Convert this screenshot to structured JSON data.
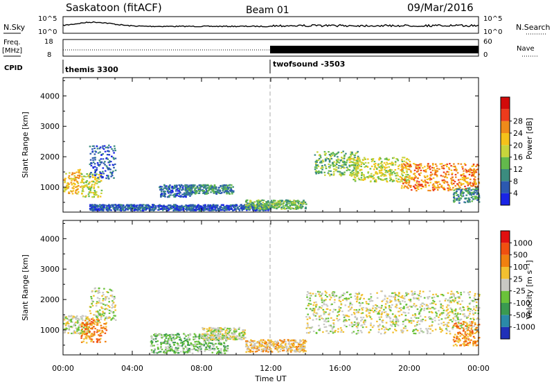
{
  "header": {
    "station": "Saskatoon (fitACF)",
    "beam": "Beam 01",
    "date": "09/Mar/2016"
  },
  "top_panels": {
    "nsky_label": "N.Sky",
    "nsky_ticks": [
      "10^5",
      "10^0"
    ],
    "nsearch_label": "N.Search",
    "nsearch_ticks": [
      "10^5",
      "10^0"
    ],
    "freq_label": "Freq.",
    "freq_unit": "[MHz]",
    "freq_ticks": [
      "18",
      "8"
    ],
    "nave_label": "Nave",
    "nave_ticks": [
      "60",
      "0"
    ],
    "cpid_label": "CPID",
    "programs": [
      {
        "name": "themis 3300",
        "start_hour": 0
      },
      {
        "name": "twofsound -3503",
        "start_hour": 12
      }
    ]
  },
  "chart_data": [
    {
      "type": "heatmap",
      "name": "power",
      "ylabel": "Slant Range [km]",
      "ylim": [
        180,
        4600
      ],
      "y_ticks": [
        1000,
        2000,
        3000,
        4000
      ],
      "colorbar_label": "Power [dB]",
      "colorbar_ticks": [
        "4",
        "8",
        "12",
        "16",
        "20",
        "24",
        "28"
      ],
      "colorbar_colors": [
        "#1a24e6",
        "#2c59b0",
        "#3b8c7f",
        "#63b94c",
        "#c7d53c",
        "#f5c21a",
        "#f08a1a",
        "#ec3b1c",
        "#d20a0a"
      ],
      "regions": [
        {
          "x": [
            0.0,
            1.0
          ],
          "y": [
            800,
            1600
          ],
          "level": 5
        },
        {
          "x": [
            1.0,
            2.2
          ],
          "y": [
            700,
            1500
          ],
          "level": 4
        },
        {
          "x": [
            1.5,
            3.0
          ],
          "y": [
            1300,
            2400
          ],
          "level": 1
        },
        {
          "x": [
            5.5,
            7.5
          ],
          "y": [
            700,
            1100
          ],
          "level": 1
        },
        {
          "x": [
            7.0,
            9.8
          ],
          "y": [
            800,
            1100
          ],
          "level": 2
        },
        {
          "x": [
            1.5,
            12.0
          ],
          "y": [
            250,
            450
          ],
          "level": 1
        },
        {
          "x": [
            10.5,
            14.0
          ],
          "y": [
            300,
            600
          ],
          "level": 3
        },
        {
          "x": [
            14.5,
            17.0
          ],
          "y": [
            1400,
            2200
          ],
          "level": 3
        },
        {
          "x": [
            16.5,
            20.0
          ],
          "y": [
            1200,
            2000
          ],
          "level": 4
        },
        {
          "x": [
            19.5,
            24.0
          ],
          "y": [
            900,
            1800
          ],
          "level": 6
        },
        {
          "x": [
            22.5,
            24.0
          ],
          "y": [
            500,
            1000
          ],
          "level": 2
        }
      ]
    },
    {
      "type": "heatmap",
      "name": "velocity",
      "xlabel": "Time UT",
      "ylabel": "Slant Range [km]",
      "ylim": [
        180,
        4600
      ],
      "y_ticks": [
        1000,
        2000,
        3000,
        4000
      ],
      "x_ticks": [
        "00:00",
        "04:00",
        "08:00",
        "12:00",
        "16:00",
        "20:00",
        "00:00"
      ],
      "xlim": [
        0,
        24
      ],
      "colorbar_label": "Velocity [m s⁻¹]",
      "colorbar_ticks": [
        "1000",
        "500",
        "100",
        "25",
        "-25",
        "-100",
        "-500",
        "-1000"
      ],
      "colorbar_colors": [
        "#2030b8",
        "#2a8aa8",
        "#3a9a50",
        "#6ac23a",
        "#c8c8c4",
        "#f2c030",
        "#f08010",
        "#f05010",
        "#e01010"
      ],
      "regions": [
        {
          "x": [
            0.0,
            1.5
          ],
          "y": [
            900,
            1500
          ],
          "level": 4
        },
        {
          "x": [
            1.0,
            2.5
          ],
          "y": [
            600,
            1400
          ],
          "level": 6
        },
        {
          "x": [
            1.5,
            3.0
          ],
          "y": [
            1300,
            2400
          ],
          "level": 4
        },
        {
          "x": [
            5.0,
            9.5
          ],
          "y": [
            250,
            900
          ],
          "level": 3
        },
        {
          "x": [
            8.0,
            10.5
          ],
          "y": [
            700,
            1100
          ],
          "level": 4
        },
        {
          "x": [
            10.5,
            14.0
          ],
          "y": [
            300,
            700
          ],
          "level": 5
        },
        {
          "x": [
            14.0,
            24.0
          ],
          "y": [
            900,
            2300
          ],
          "level": 4
        },
        {
          "x": [
            22.5,
            24.0
          ],
          "y": [
            500,
            1300
          ],
          "level": 6
        }
      ]
    }
  ]
}
